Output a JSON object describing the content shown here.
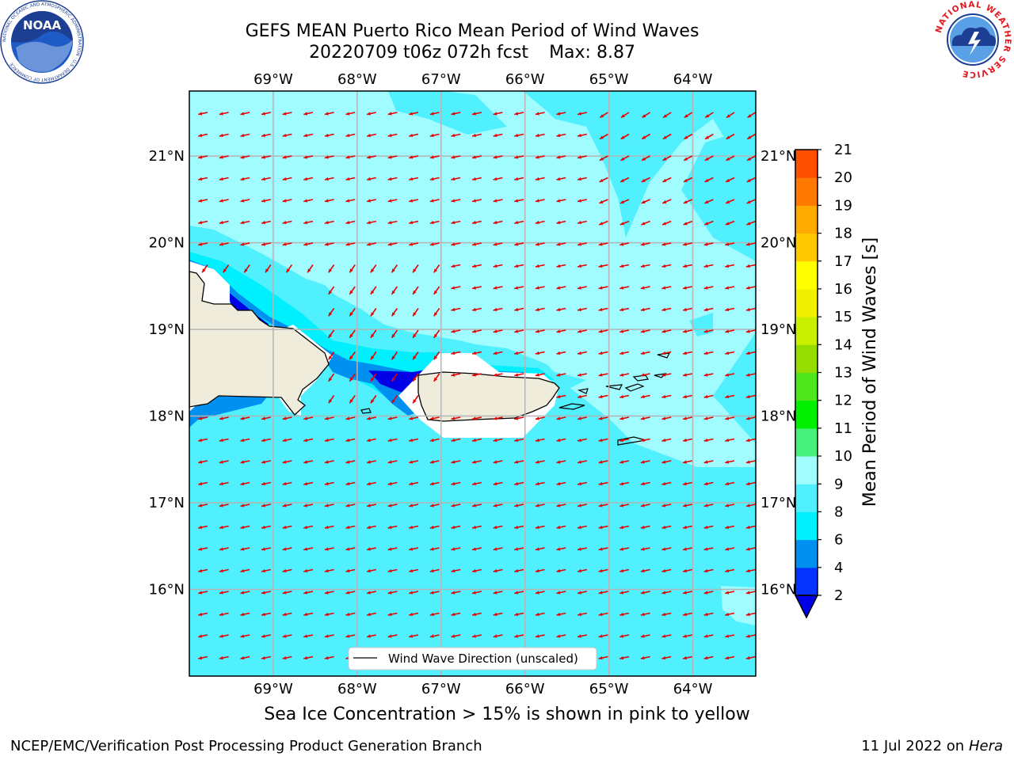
{
  "header": {
    "title": "GEFS MEAN Puerto Rico Mean Period of Wind Waves",
    "subtitle": "20220709 t06z 072h fcst",
    "max_label": "Max: 8.87"
  },
  "map": {
    "region": "Puerto Rico",
    "lon_range": [
      -70.0,
      -63.25
    ],
    "lat_range": [
      15.0,
      21.75
    ],
    "lon_ticks": [
      "69°W",
      "68°W",
      "67°W",
      "66°W",
      "65°W",
      "64°W"
    ],
    "lat_ticks": [
      "21°N",
      "20°N",
      "19°N",
      "18°N",
      "17°N",
      "16°N"
    ],
    "grid": true,
    "arrow_color": "#e60000",
    "land_color": "#efecdc",
    "legend_label": "Wind Wave Direction (unscaled)",
    "legend_placement": "bottom-center"
  },
  "colorbar": {
    "label": "Mean Period of Wind Waves [s]",
    "ticks": [
      "2",
      "4",
      "6",
      "8",
      "9",
      "10",
      "11",
      "12",
      "13",
      "14",
      "15",
      "16",
      "17",
      "18",
      "19",
      "20",
      "21"
    ],
    "colors": [
      "#0532ff",
      "#0090f0",
      "#00f0ff",
      "#50f0ff",
      "#a0fcff",
      "#46f07a",
      "#00f000",
      "#50e61e",
      "#96dc00",
      "#c8f000",
      "#f0f000",
      "#ffff00",
      "#ffc800",
      "#ffaa00",
      "#ff7800",
      "#ff5000",
      "#f01400",
      "#ff0000"
    ],
    "under_color": "#0000e6"
  },
  "footer": {
    "note": "Sea Ice Concentration > 15% is shown in pink to yellow",
    "left": "NCEP/EMC/Verification Post Processing Product Generation Branch",
    "date": "11 Jul 2022 on",
    "machine": "Hera"
  },
  "logos": {
    "noaa": "NOAA",
    "noaa_ring": "NATIONAL OCEANIC AND ATMOSPHERIC ADMINISTRATION · U.S. DEPARTMENT OF COMMERCE",
    "nws_ring": "NATIONAL WEATHER SERVICE"
  }
}
